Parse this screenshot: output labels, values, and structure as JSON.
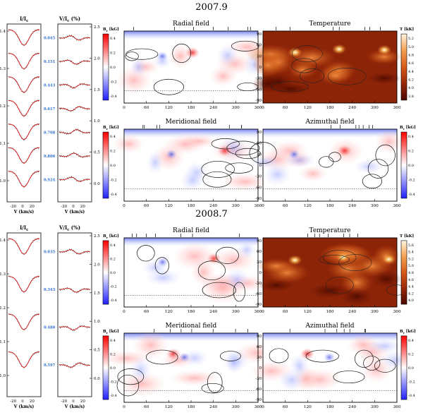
{
  "panels": [
    {
      "epoch": "2007.9",
      "profiles": {
        "i_label_main": "I/I",
        "i_label_sub": "c",
        "v_label_main": "V/I",
        "v_label_sub": "c",
        "v_label_unit": " (%)",
        "i_yticks": [
          "1.4",
          "1.3",
          "1.2",
          "1.1",
          "1.0"
        ],
        "v_yticks": [
          "2.5",
          "2.0",
          "1.5",
          "1.0",
          "0.5",
          "0.0"
        ],
        "xticks": [
          "-20",
          "0",
          "20"
        ],
        "xlabel": "V (km/s)",
        "phases": [
          "0.045",
          "0.151",
          "0.443",
          "0.617",
          "0.708",
          "0.806",
          "0.924"
        ]
      },
      "maps": [
        {
          "title": "Radial field",
          "cbar_label_main": "B",
          "cbar_label_sub": "r",
          "cbar_label_unit": " [kG]",
          "cbar_ticks": [
            "0.4",
            "0.2",
            "0.0",
            "-0.2",
            "-0.4"
          ],
          "xticks": [
            "0",
            "60",
            "120",
            "180",
            "240",
            "300",
            "360"
          ],
          "yticks": [],
          "kind": "field"
        },
        {
          "title": "Temperature",
          "cbar_label_main": "T [kK]",
          "cbar_label_sub": "",
          "cbar_label_unit": "",
          "cbar_ticks": [
            "5.2",
            "5.0",
            "4.8",
            "4.6",
            "4.4",
            "4.2",
            "4.0",
            "3.8"
          ],
          "xticks": [
            "0",
            "60",
            "120",
            "180",
            "240",
            "300",
            "360"
          ],
          "yticks": [
            "90",
            "60",
            "30",
            "0",
            "-30",
            "-60",
            "-90"
          ],
          "kind": "temp"
        },
        {
          "title": "Meridional field",
          "cbar_label_main": "B",
          "cbar_label_sub": "r",
          "cbar_label_unit": " [kG]",
          "cbar_ticks": [
            "0.4",
            "0.2",
            "0.0",
            "-0.2",
            "-0.4"
          ],
          "xticks": [
            "0",
            "60",
            "120",
            "180",
            "240",
            "300",
            "360"
          ],
          "yticks": [],
          "kind": "field"
        },
        {
          "title": "Azimuthal field",
          "cbar_label_main": "B",
          "cbar_label_sub": "r",
          "cbar_label_unit": " [kG]",
          "cbar_ticks": [
            "0.4",
            "0.2",
            "0.0",
            "-0.2",
            "-0.4"
          ],
          "xticks": [
            "0",
            "60",
            "120",
            "180",
            "240",
            "300",
            "360"
          ],
          "yticks": [
            "90",
            "60",
            "30",
            "0",
            "-30",
            "-60",
            "-90"
          ],
          "kind": "field"
        }
      ]
    },
    {
      "epoch": "2008.7",
      "profiles": {
        "i_label_main": "I/I",
        "i_label_sub": "c",
        "v_label_main": "V/I",
        "v_label_sub": "c",
        "v_label_unit": " (%)",
        "i_yticks": [
          "1.4",
          "1.3",
          "1.2",
          "1.1",
          "1.0"
        ],
        "v_yticks": [
          "2.5",
          "2.0",
          "1.5",
          "1.0",
          "0.5",
          "0.0"
        ],
        "xticks": [
          "-20",
          "0",
          "20"
        ],
        "xlabel": "V (km/s)",
        "phases": [
          "0.035",
          "0.343",
          "0.480",
          "0.597"
        ]
      },
      "maps": [
        {
          "title": "Radial field",
          "cbar_label_main": "B",
          "cbar_label_sub": "r",
          "cbar_label_unit": " [kG]",
          "cbar_ticks": [
            "0.4",
            "0.2",
            "0.0",
            "-0.2",
            "-0.4"
          ],
          "xticks": [
            "0",
            "60",
            "120",
            "180",
            "240",
            "300",
            "360"
          ],
          "yticks": [],
          "kind": "field"
        },
        {
          "title": "Temperature",
          "cbar_label_main": "T [kK]",
          "cbar_label_sub": "",
          "cbar_label_unit": "",
          "cbar_ticks": [
            "5.6",
            "5.4",
            "5.2",
            "5.0",
            "4.8",
            "4.6",
            "4.4",
            "4.2",
            "4.0"
          ],
          "xticks": [
            "0",
            "60",
            "120",
            "180",
            "240",
            "300",
            "360"
          ],
          "yticks": [
            "90",
            "60",
            "30",
            "0",
            "-30",
            "-60",
            "-90"
          ],
          "kind": "temp"
        },
        {
          "title": "Meridional field",
          "cbar_label_main": "B",
          "cbar_label_sub": "r",
          "cbar_label_unit": " [kG]",
          "cbar_ticks": [
            "0.4",
            "0.2",
            "0.0",
            "-0.2",
            "-0.4"
          ],
          "xticks": [
            "0",
            "60",
            "120",
            "180",
            "240",
            "300",
            "360"
          ],
          "yticks": [],
          "kind": "field"
        },
        {
          "title": "Azimuthal field",
          "cbar_label_main": "B",
          "cbar_label_sub": "r",
          "cbar_label_unit": " [kG]",
          "cbar_ticks": [
            "0.4",
            "0.2",
            "0.0",
            "-0.2",
            "-0.4"
          ],
          "xticks": [
            "0",
            "60",
            "120",
            "180",
            "240",
            "300",
            "360"
          ],
          "yticks": [
            "90",
            "60",
            "30",
            "0",
            "-30",
            "-60",
            "-90"
          ],
          "kind": "field"
        }
      ]
    }
  ]
}
